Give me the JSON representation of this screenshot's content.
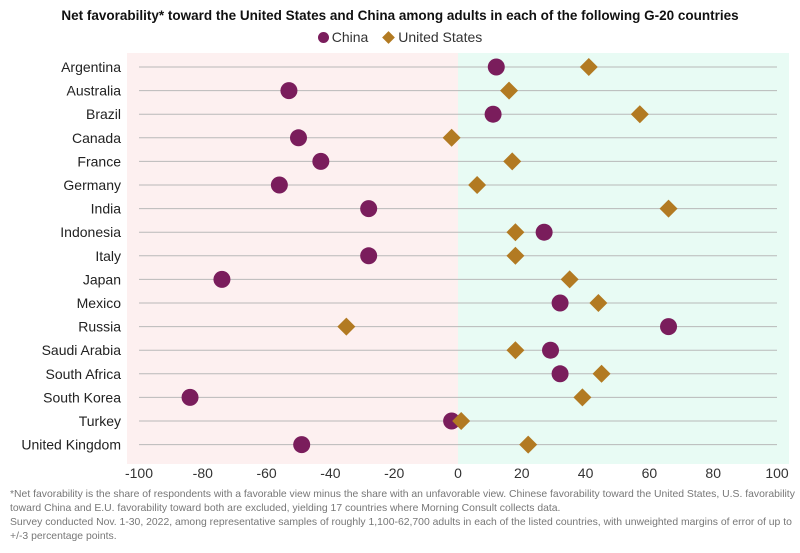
{
  "chart_data": {
    "type": "scatter",
    "title": "Net favorability* toward the United States and China among adults in each of the following G-20 countries",
    "xlim": [
      -100,
      100
    ],
    "xticks": [
      -100,
      -80,
      -60,
      -40,
      -20,
      0,
      20,
      40,
      60,
      80,
      100
    ],
    "categories": [
      "Argentina",
      "Australia",
      "Brazil",
      "Canada",
      "France",
      "Germany",
      "India",
      "Indonesia",
      "Italy",
      "Japan",
      "Mexico",
      "Russia",
      "Saudi Arabia",
      "South Africa",
      "South Korea",
      "Turkey",
      "United Kingdom"
    ],
    "series": [
      {
        "name": "China",
        "marker": "circle",
        "color": "#7a1d5c",
        "values": [
          12,
          -53,
          11,
          -50,
          -43,
          -56,
          -28,
          27,
          -28,
          -74,
          32,
          66,
          29,
          32,
          -84,
          -2,
          -49
        ]
      },
      {
        "name": "United States",
        "marker": "diamond",
        "color": "#b27a22",
        "values": [
          41,
          16,
          57,
          -2,
          17,
          6,
          66,
          18,
          18,
          35,
          44,
          -35,
          18,
          45,
          39,
          1,
          22
        ]
      }
    ],
    "legend": "top-center",
    "negative_region_color": "#fdf0f0",
    "positive_region_color": "#e8fbf4",
    "grid_color": "#b9b9b9"
  },
  "notes": {
    "footnote": "*Net favorability is the share of respondents with a favorable view minus the share with an unfavorable view. Chinese favorability toward the United States, U.S. favorability toward China and E.U. favorability toward both are excluded, yielding 17 countries where Morning Consult collects data.",
    "survey": "Survey conducted Nov. 1-30, 2022, among representative samples of roughly 1,100-62,700 adults in each of the listed countries, with unweighted margins of error of up to +/-3 percentage points."
  }
}
